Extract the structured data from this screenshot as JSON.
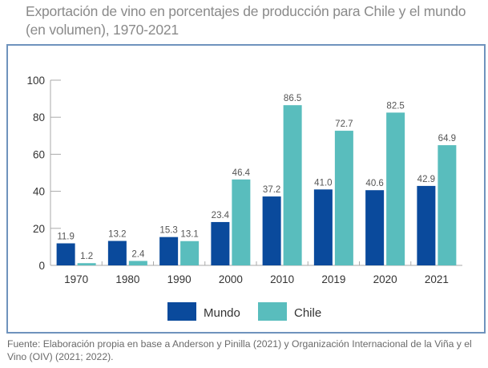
{
  "title": "Exportación de vino en porcentajes de producción para Chile y el mundo (en volumen), 1970-2021",
  "source": "Fuente: Elaboración propia en base a Anderson y Pinilla (2021) y Organización Internacional de la Viña y el Vino (OIV) (2021; 2022).",
  "colors": {
    "mundo": "#0a4a9c",
    "chile": "#59bdbd",
    "frame": "#6f93bd",
    "axis": "#aaaaaa"
  },
  "chart_data": {
    "type": "bar",
    "title": "Exportación de vino en porcentajes de producción para Chile y el mundo (en volumen), 1970-2021",
    "xlabel": "",
    "ylabel": "",
    "ylim": [
      0,
      100
    ],
    "yticks": [
      0,
      20,
      40,
      60,
      80,
      100
    ],
    "categories": [
      "1970",
      "1980",
      "1990",
      "2000",
      "2010",
      "2019",
      "2020",
      "2021"
    ],
    "series": [
      {
        "name": "Mundo",
        "color": "#0a4a9c",
        "values": [
          11.9,
          13.2,
          15.3,
          23.4,
          37.2,
          41.0,
          40.6,
          42.9
        ],
        "labels": [
          "11.9",
          "13.2",
          "15.3",
          "23.4",
          "37.2",
          "41.0",
          "40.6",
          "42.9"
        ]
      },
      {
        "name": "Chile",
        "color": "#59bdbd",
        "values": [
          1.2,
          2.4,
          13.1,
          46.4,
          86.5,
          72.7,
          82.5,
          64.9
        ],
        "labels": [
          "1.2",
          "2.4",
          "13.1",
          "46.4",
          "86.5",
          "72.7",
          "82.5",
          "64.9"
        ]
      }
    ],
    "legend": {
      "position": "bottom-center",
      "entries": [
        "Mundo",
        "Chile"
      ]
    },
    "grid": false
  }
}
